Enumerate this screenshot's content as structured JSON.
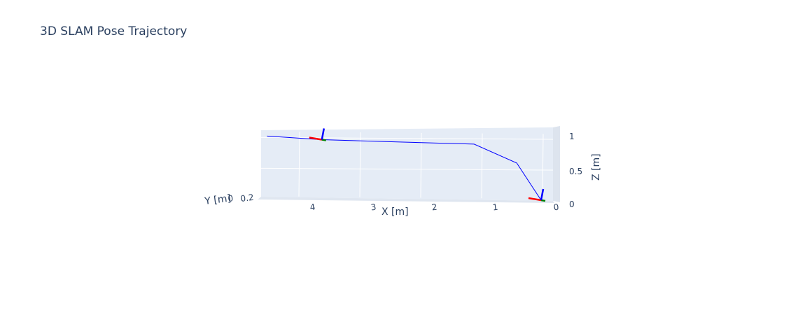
{
  "chart_data": {
    "type": "line3d",
    "title": "3D SLAM Pose Trajectory",
    "x_axis": {
      "label": "X [m]",
      "ticks": [
        "0",
        "1",
        "2",
        "3",
        "4"
      ]
    },
    "y_axis": {
      "label": "Y [m]",
      "ticks": [
        "0",
        "0.2"
      ]
    },
    "z_axis": {
      "label": "Z [m]",
      "ticks": [
        "0",
        "0.5",
        "1"
      ]
    },
    "series": [
      {
        "line_color": "#0000ff",
        "x": [
          0.0,
          0.4,
          1.1,
          3.6,
          4.5
        ],
        "y": [
          0.0,
          0.0,
          0.0,
          0.0,
          0.0
        ],
        "z": [
          0.0,
          0.6,
          0.9,
          0.95,
          1.0
        ]
      }
    ],
    "pose_frames": [
      {
        "x": 0.0,
        "y": 0.0,
        "z": 0.0
      },
      {
        "x": 3.6,
        "y": 0.0,
        "z": 0.95
      }
    ],
    "frame_axis_colors": {
      "x": "#ff0000",
      "y": "#008000",
      "z": "#0000ff"
    },
    "scene_background": "#e5ecf6",
    "grid_color": "#ffffff"
  }
}
